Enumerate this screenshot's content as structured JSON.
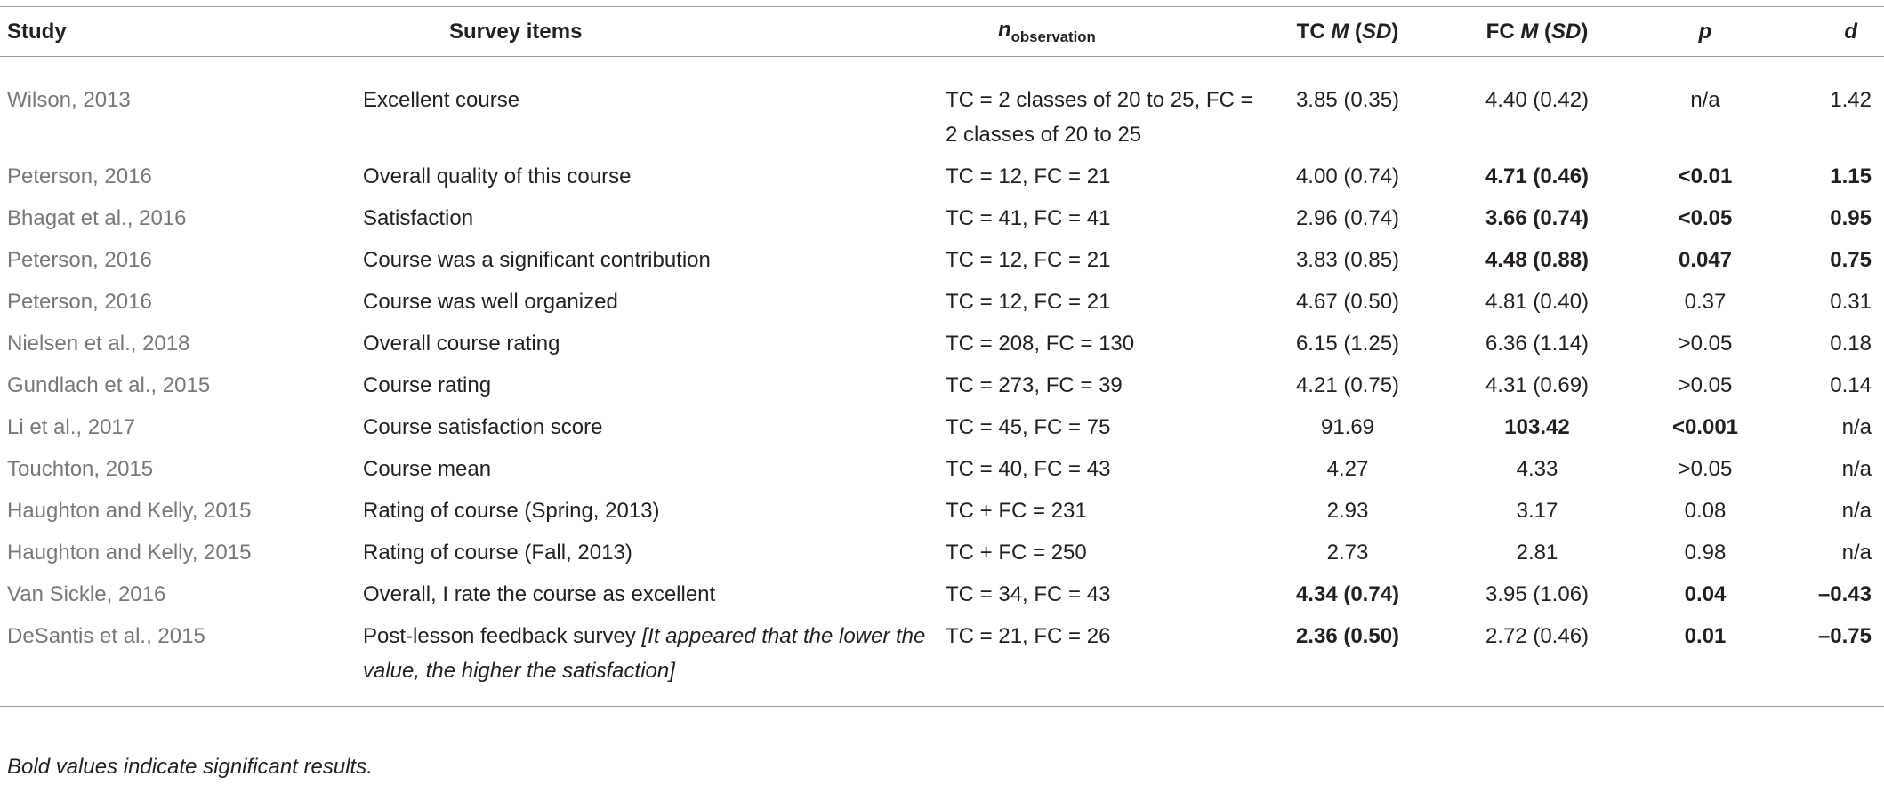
{
  "table": {
    "header": [
      "Study",
      "Survey items",
      [
        {
          "text": "n",
          "italic": true
        },
        {
          "text": "observation",
          "subscript": true
        }
      ],
      [
        {
          "text": "TC "
        },
        {
          "text": "M",
          "italic": true
        },
        {
          "text": " ("
        },
        {
          "text": "SD",
          "italic": true
        },
        {
          "text": ")"
        }
      ],
      [
        {
          "text": "FC "
        },
        {
          "text": "M",
          "italic": true
        },
        {
          "text": " ("
        },
        {
          "text": "SD",
          "italic": true
        },
        {
          "text": ")"
        }
      ],
      [
        {
          "text": "p",
          "italic": true
        }
      ],
      [
        {
          "text": "d",
          "italic": true
        }
      ]
    ],
    "rows": [
      {
        "cells": [
          "Wilson, 2013",
          "Excellent course",
          "TC = 2 classes of 20 to 25, FC = 2 classes of 20 to 25",
          "3.85 (0.35)",
          "4.40 (0.42)",
          "n/a",
          "1.42"
        ],
        "bold": []
      },
      {
        "cells": [
          "Peterson, 2016",
          "Overall quality of this course",
          "TC = 12, FC = 21",
          "4.00 (0.74)",
          "4.71 (0.46)",
          "<0.01",
          "1.15"
        ],
        "bold": [
          4,
          5,
          6
        ]
      },
      {
        "cells": [
          "Bhagat et al., 2016",
          "Satisfaction",
          "TC = 41, FC = 41",
          "2.96 (0.74)",
          "3.66 (0.74)",
          "<0.05",
          "0.95"
        ],
        "bold": [
          4,
          5,
          6
        ]
      },
      {
        "cells": [
          "Peterson, 2016",
          "Course was a significant contribution",
          "TC = 12, FC = 21",
          "3.83 (0.85)",
          "4.48 (0.88)",
          "0.047",
          "0.75"
        ],
        "bold": [
          4,
          5,
          6
        ]
      },
      {
        "cells": [
          "Peterson, 2016",
          "Course was well organized",
          "TC = 12, FC = 21",
          "4.67 (0.50)",
          "4.81 (0.40)",
          "0.37",
          "0.31"
        ],
        "bold": []
      },
      {
        "cells": [
          "Nielsen et al., 2018",
          "Overall course rating",
          "TC = 208, FC = 130",
          "6.15 (1.25)",
          "6.36 (1.14)",
          ">0.05",
          "0.18"
        ],
        "bold": []
      },
      {
        "cells": [
          "Gundlach et al., 2015",
          "Course rating",
          "TC = 273, FC = 39",
          "4.21 (0.75)",
          "4.31 (0.69)",
          ">0.05",
          "0.14"
        ],
        "bold": []
      },
      {
        "cells": [
          "Li et al., 2017",
          "Course satisfaction score",
          "TC = 45, FC = 75",
          "91.69",
          "103.42",
          "<0.001",
          "n/a"
        ],
        "bold": [
          4,
          5
        ]
      },
      {
        "cells": [
          "Touchton, 2015",
          "Course mean",
          "TC = 40, FC = 43",
          "4.27",
          "4.33",
          ">0.05",
          "n/a"
        ],
        "bold": []
      },
      {
        "cells": [
          "Haughton and Kelly, 2015",
          "Rating of course (Spring, 2013)",
          "TC + FC = 231",
          "2.93",
          "3.17",
          "0.08",
          "n/a"
        ],
        "bold": []
      },
      {
        "cells": [
          "Haughton and Kelly, 2015",
          "Rating of course (Fall, 2013)",
          "TC + FC = 250",
          "2.73",
          "2.81",
          "0.98",
          "n/a"
        ],
        "bold": []
      },
      {
        "cells": [
          "Van Sickle, 2016",
          "Overall, I rate the course as excellent",
          "TC = 34, FC = 43",
          "4.34 (0.74)",
          "3.95 (1.06)",
          "0.04",
          "–0.43"
        ],
        "bold": [
          3,
          5,
          6
        ]
      },
      {
        "cells": [
          "DeSantis et al., 2015",
          [
            {
              "text": "Post-lesson feedback survey "
            },
            {
              "text": "[It appeared that the lower the value, the higher the satisfaction]",
              "italic": true
            }
          ],
          "TC = 21, FC = 26",
          "2.36 (0.50)",
          "2.72 (0.46)",
          "0.01",
          "–0.75"
        ],
        "bold": [
          3,
          5,
          6
        ]
      }
    ],
    "footnote": "Bold values indicate significant results."
  }
}
